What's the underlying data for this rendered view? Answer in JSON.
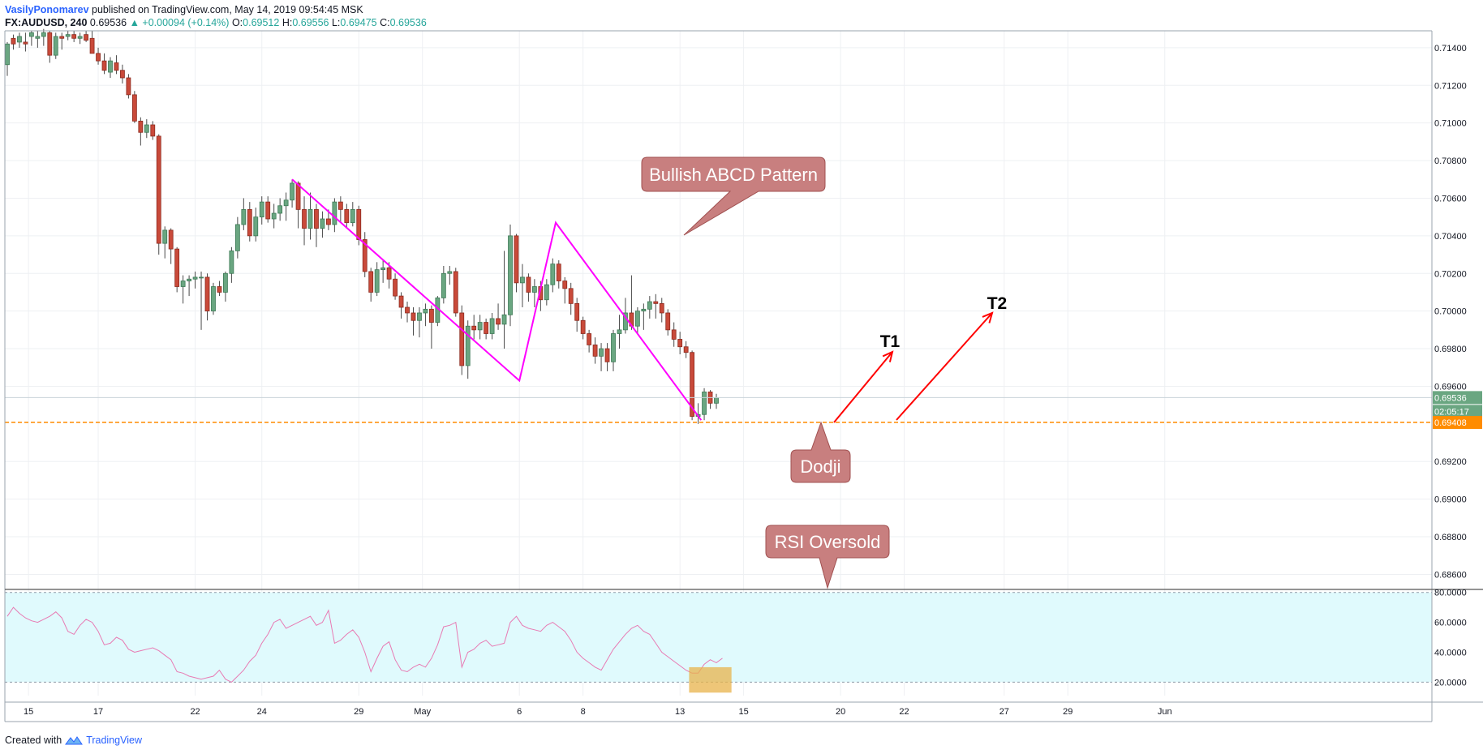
{
  "header": {
    "author": "VasilyPonomarev",
    "published": "published on TradingView.com, May 14, 2019 09:54:45 MSK",
    "symbol": "FX:AUDUSD, 240",
    "price": "0.69536",
    "change": "▲ +0.00094 (+0.14%)",
    "o_label": "O:",
    "o_value": "0.69512",
    "h_label": "H:",
    "h_value": "0.69556",
    "l_label": "L:",
    "l_value": "0.69475",
    "c_label": "C:",
    "c_value": "0.69536"
  },
  "footer": {
    "created_with": "Created with",
    "brand": "TradingView"
  },
  "colors": {
    "up": "#6aa681",
    "down": "#c94a3a",
    "pattern": "#ff00ff",
    "support": "#ff8c00",
    "arrow": "#ff0000",
    "callout": "#c87f7f",
    "rsi_fill": "#e0fafd",
    "rsi_line": "#e87ab3"
  },
  "chart_data": [
    {
      "type": "candlestick",
      "title": "FX:AUDUSD, 240",
      "x_ticks": [
        "15",
        "17",
        "22",
        "24",
        "29",
        "May",
        "6",
        "8",
        "13",
        "15",
        "20",
        "22",
        "27",
        "29",
        "Jun"
      ],
      "y_ticks": [
        "0.71400",
        "0.71200",
        "0.71000",
        "0.70800",
        "0.70600",
        "0.70400",
        "0.70200",
        "0.70000",
        "0.69800",
        "0.69600",
        "0.69200",
        "0.69000",
        "0.68800",
        "0.68600"
      ],
      "ylim": [
        0.6852,
        0.7149
      ],
      "last_price_label": "0.69536",
      "countdown_label": "02:05:17",
      "support_level": 0.69408,
      "support_label": "0.69408",
      "candles": [
        [
          0.7131,
          0.7143,
          0.7125,
          0.7142
        ],
        [
          0.7145,
          0.7147,
          0.7139,
          0.7142
        ],
        [
          0.7143,
          0.7148,
          0.714,
          0.7146
        ],
        [
          0.7143,
          0.7148,
          0.7138,
          0.7142
        ],
        [
          0.7146,
          0.7149,
          0.7141,
          0.7148
        ],
        [
          0.7145,
          0.7149,
          0.714,
          0.7146
        ],
        [
          0.7146,
          0.715,
          0.7141,
          0.7148
        ],
        [
          0.7148,
          0.7149,
          0.7132,
          0.7136
        ],
        [
          0.7136,
          0.7148,
          0.7134,
          0.7146
        ],
        [
          0.7146,
          0.7148,
          0.7139,
          0.7145
        ],
        [
          0.7146,
          0.7149,
          0.7144,
          0.7147
        ],
        [
          0.7147,
          0.7149,
          0.7143,
          0.7145
        ],
        [
          0.7145,
          0.7148,
          0.7142,
          0.7146
        ],
        [
          0.7147,
          0.7149,
          0.7143,
          0.7144
        ],
        [
          0.7145,
          0.7149,
          0.7139,
          0.7137
        ],
        [
          0.7137,
          0.714,
          0.7131,
          0.7133
        ],
        [
          0.7133,
          0.7137,
          0.7126,
          0.7128
        ],
        [
          0.7127,
          0.7135,
          0.7124,
          0.7133
        ],
        [
          0.7132,
          0.7136,
          0.7126,
          0.7128
        ],
        [
          0.7128,
          0.7131,
          0.7121,
          0.7124
        ],
        [
          0.7124,
          0.7126,
          0.7113,
          0.7115
        ],
        [
          0.7115,
          0.7117,
          0.71,
          0.7101
        ],
        [
          0.7101,
          0.7103,
          0.7088,
          0.7095
        ],
        [
          0.7095,
          0.7102,
          0.7092,
          0.7099
        ],
        [
          0.7099,
          0.7101,
          0.7091,
          0.7093
        ],
        [
          0.7093,
          0.7094,
          0.703,
          0.7036
        ],
        [
          0.7036,
          0.7045,
          0.7028,
          0.7043
        ],
        [
          0.7043,
          0.7044,
          0.7025,
          0.7033
        ],
        [
          0.7033,
          0.7034,
          0.701,
          0.7013
        ],
        [
          0.7013,
          0.7019,
          0.7004,
          0.7016
        ],
        [
          0.7016,
          0.7019,
          0.7008,
          0.7017
        ],
        [
          0.7017,
          0.7021,
          0.7012,
          0.7018
        ],
        [
          0.7018,
          0.7021,
          0.699,
          0.7018
        ],
        [
          0.7018,
          0.702,
          0.6995,
          0.7
        ],
        [
          0.7,
          0.7015,
          0.6998,
          0.7013
        ],
        [
          0.7013,
          0.7016,
          0.7008,
          0.701
        ],
        [
          0.701,
          0.7021,
          0.7005,
          0.702
        ],
        [
          0.702,
          0.7034,
          0.7015,
          0.7032
        ],
        [
          0.7032,
          0.705,
          0.7028,
          0.7046
        ],
        [
          0.7046,
          0.706,
          0.7043,
          0.7054
        ],
        [
          0.7054,
          0.7058,
          0.7037,
          0.704
        ],
        [
          0.704,
          0.7055,
          0.7037,
          0.705
        ],
        [
          0.705,
          0.7061,
          0.7046,
          0.7058
        ],
        [
          0.7058,
          0.7061,
          0.7047,
          0.7049
        ],
        [
          0.7049,
          0.7057,
          0.7044,
          0.7052
        ],
        [
          0.7052,
          0.706,
          0.7048,
          0.7056
        ],
        [
          0.7056,
          0.7063,
          0.7048,
          0.7059
        ],
        [
          0.7059,
          0.707,
          0.7055,
          0.7068
        ],
        [
          0.7068,
          0.7069,
          0.7044,
          0.7054
        ],
        [
          0.7054,
          0.7061,
          0.7035,
          0.7044
        ],
        [
          0.7044,
          0.7063,
          0.7038,
          0.7054
        ],
        [
          0.7054,
          0.7057,
          0.7034,
          0.7044
        ],
        [
          0.7044,
          0.7053,
          0.7039,
          0.7049
        ],
        [
          0.7049,
          0.7054,
          0.7043,
          0.7046
        ],
        [
          0.7046,
          0.706,
          0.7042,
          0.7058
        ],
        [
          0.7058,
          0.7061,
          0.7047,
          0.7054
        ],
        [
          0.7054,
          0.7057,
          0.7044,
          0.7047
        ],
        [
          0.7047,
          0.7058,
          0.7045,
          0.7054
        ],
        [
          0.7054,
          0.7056,
          0.7035,
          0.7038
        ],
        [
          0.7038,
          0.7042,
          0.7018,
          0.7021
        ],
        [
          0.7021,
          0.7023,
          0.7005,
          0.701
        ],
        [
          0.701,
          0.7026,
          0.7008,
          0.7022
        ],
        [
          0.7022,
          0.7027,
          0.7015,
          0.7023
        ],
        [
          0.7023,
          0.7026,
          0.7012,
          0.7017
        ],
        [
          0.7017,
          0.702,
          0.7006,
          0.7008
        ],
        [
          0.7008,
          0.701,
          0.6996,
          0.7002
        ],
        [
          0.7002,
          0.7005,
          0.6994,
          0.6999
        ],
        [
          0.6999,
          0.7002,
          0.6987,
          0.6995
        ],
        [
          0.6995,
          0.7002,
          0.6986,
          0.6999
        ],
        [
          0.6999,
          0.7004,
          0.6992,
          0.7001
        ],
        [
          0.7001,
          0.7003,
          0.698,
          0.6994
        ],
        [
          0.6994,
          0.7008,
          0.6992,
          0.7007
        ],
        [
          0.7007,
          0.7024,
          0.7004,
          0.702
        ],
        [
          0.702,
          0.7024,
          0.7014,
          0.7021
        ],
        [
          0.7021,
          0.7023,
          0.6997,
          0.6999
        ],
        [
          0.6999,
          0.7003,
          0.6966,
          0.6971
        ],
        [
          0.6971,
          0.6995,
          0.6964,
          0.6992
        ],
        [
          0.6992,
          0.6998,
          0.6985,
          0.699
        ],
        [
          0.699,
          0.6998,
          0.6985,
          0.6994
        ],
        [
          0.6994,
          0.6996,
          0.6985,
          0.6988
        ],
        [
          0.6988,
          0.6999,
          0.6985,
          0.6996
        ],
        [
          0.6996,
          0.7004,
          0.699,
          0.6993
        ],
        [
          0.6993,
          0.7032,
          0.698,
          0.6998
        ],
        [
          0.6998,
          0.7046,
          0.6992,
          0.704
        ],
        [
          0.704,
          0.7041,
          0.701,
          0.7015
        ],
        [
          0.7015,
          0.7025,
          0.7002,
          0.7018
        ],
        [
          0.7018,
          0.702,
          0.7005,
          0.701
        ],
        [
          0.701,
          0.7017,
          0.7002,
          0.7013
        ],
        [
          0.7013,
          0.7016,
          0.7,
          0.7006
        ],
        [
          0.7006,
          0.7017,
          0.7003,
          0.7014
        ],
        [
          0.7014,
          0.7028,
          0.701,
          0.7025
        ],
        [
          0.7025,
          0.7027,
          0.7012,
          0.7016
        ],
        [
          0.7016,
          0.7018,
          0.7004,
          0.7012
        ],
        [
          0.7012,
          0.7015,
          0.6998,
          0.7004
        ],
        [
          0.7004,
          0.7007,
          0.6989,
          0.6995
        ],
        [
          0.6995,
          0.6997,
          0.6985,
          0.6988
        ],
        [
          0.6988,
          0.699,
          0.6978,
          0.6982
        ],
        [
          0.6982,
          0.6986,
          0.6972,
          0.6976
        ],
        [
          0.6976,
          0.6983,
          0.6968,
          0.698
        ],
        [
          0.698,
          0.6983,
          0.6968,
          0.6973
        ],
        [
          0.6973,
          0.699,
          0.6968,
          0.6988
        ],
        [
          0.6988,
          0.6998,
          0.698,
          0.699
        ],
        [
          0.699,
          0.7007,
          0.6988,
          0.6999
        ],
        [
          0.6999,
          0.7019,
          0.699,
          0.6992
        ],
        [
          0.6992,
          0.7002,
          0.6988,
          0.7
        ],
        [
          0.7,
          0.7004,
          0.699,
          0.7001
        ],
        [
          0.7001,
          0.7008,
          0.6996,
          0.7005
        ],
        [
          0.7005,
          0.7009,
          0.6996,
          0.7004
        ],
        [
          0.7004,
          0.7007,
          0.6994,
          0.6999
        ],
        [
          0.6999,
          0.7001,
          0.6987,
          0.699
        ],
        [
          0.699,
          0.6994,
          0.6981,
          0.6985
        ],
        [
          0.6985,
          0.6989,
          0.6977,
          0.6981
        ],
        [
          0.6981,
          0.6984,
          0.6975,
          0.6978
        ],
        [
          0.6978,
          0.6979,
          0.6942,
          0.6944
        ],
        [
          0.6944,
          0.6951,
          0.694,
          0.6945
        ],
        [
          0.6945,
          0.6959,
          0.6942,
          0.6957
        ],
        [
          0.6957,
          0.6958,
          0.6948,
          0.6951
        ],
        [
          0.6951,
          0.6956,
          0.6948,
          0.6954
        ]
      ]
    },
    {
      "type": "line",
      "title": "RSI",
      "y_ticks": [
        "80.0000",
        "60.0000",
        "40.0000",
        "20.0000"
      ],
      "ylim": [
        11,
        82
      ],
      "overbought": 80,
      "oversold": 20,
      "values": [
        64,
        70,
        66,
        63,
        61,
        60,
        62,
        64,
        67,
        63,
        54,
        52,
        58,
        62,
        60,
        54,
        45,
        46,
        50,
        48,
        42,
        40,
        41,
        42,
        43,
        41,
        38,
        35,
        27,
        26,
        24,
        23,
        22,
        23,
        24,
        28,
        22,
        20,
        24,
        28,
        34,
        38,
        46,
        52,
        60,
        62,
        56,
        58,
        60,
        62,
        64,
        58,
        60,
        68,
        46,
        48,
        52,
        55,
        50,
        40,
        27,
        36,
        44,
        47,
        35,
        28,
        27,
        30,
        32,
        30,
        36,
        45,
        57,
        58,
        60,
        30,
        40,
        42,
        46,
        48,
        44,
        45,
        46,
        60,
        64,
        58,
        56,
        55,
        54,
        58,
        60,
        57,
        54,
        48,
        40,
        36,
        33,
        30,
        28,
        35,
        42,
        47,
        52,
        56,
        58,
        54,
        52,
        46,
        40,
        37,
        34,
        31,
        28,
        26,
        26,
        32,
        35,
        33,
        36
      ]
    }
  ],
  "annotations": {
    "abcd_label": "Bullish ABCD Pattern",
    "dodji_label": "Dodji",
    "rsi_label": "RSI Oversold",
    "t1_label": "T1",
    "t2_label": "T2"
  }
}
